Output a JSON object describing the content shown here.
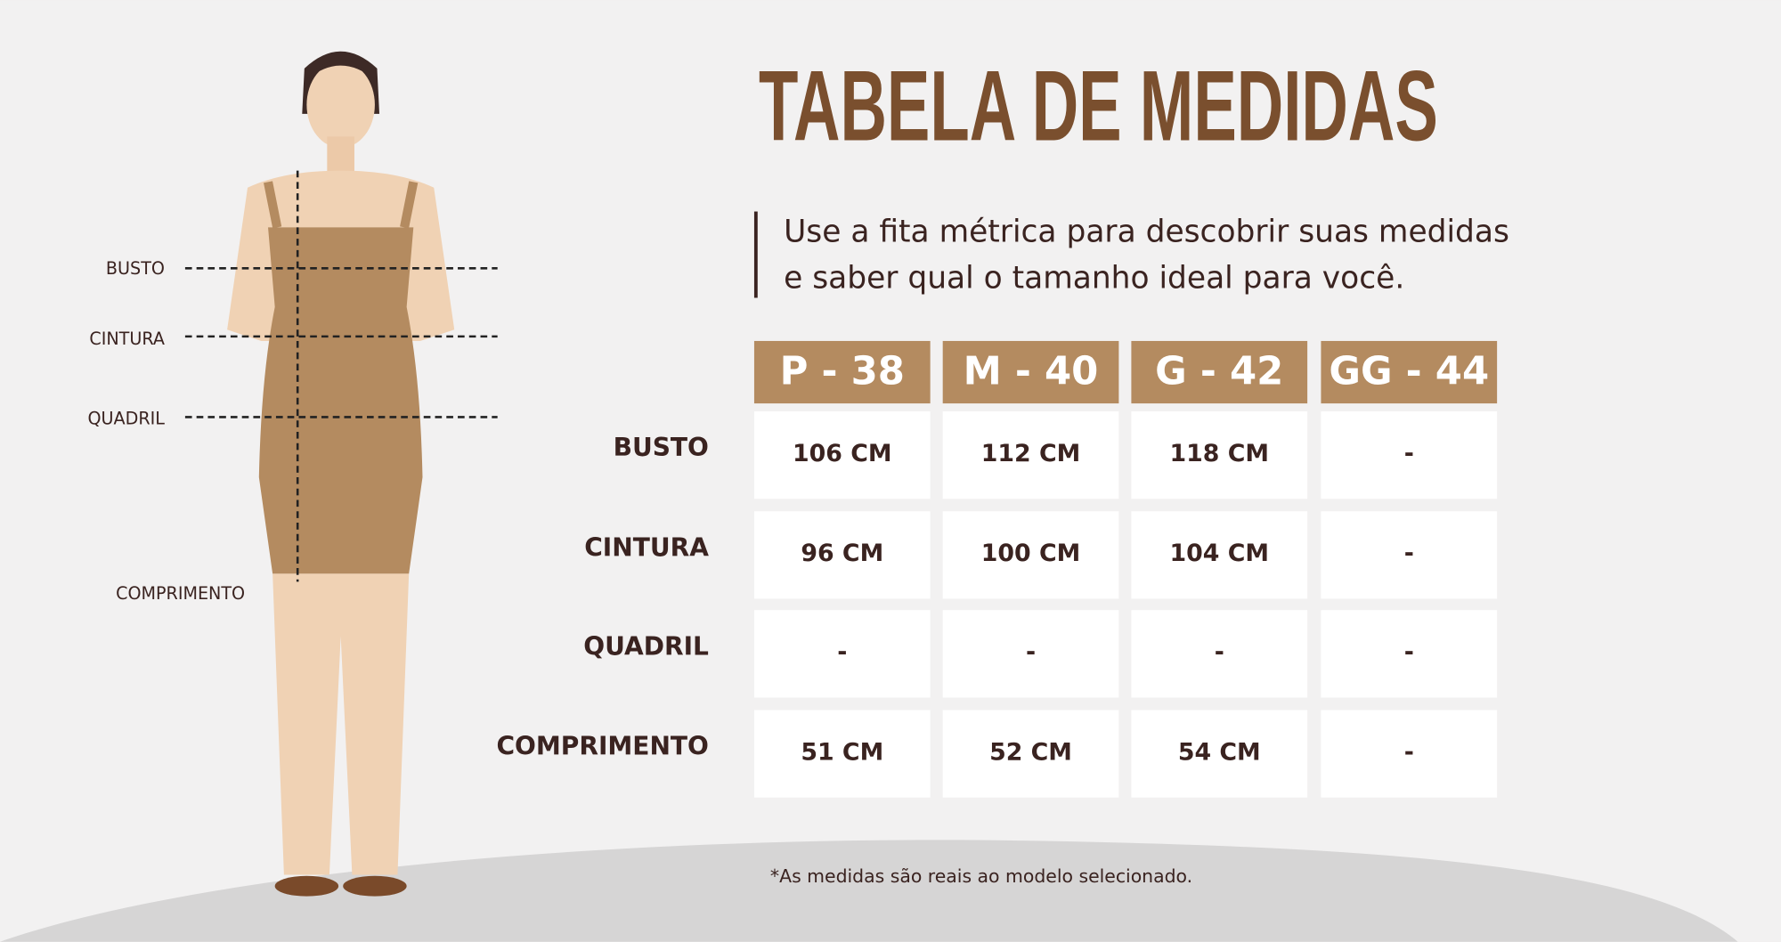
{
  "title": "TABELA DE MEDIDAS",
  "subtitle": [
    "Use a fita métrica para descobrir suas medidas",
    "e saber qual o tamanho ideal para você."
  ],
  "figure_labels": [
    "BUSTO",
    "CINTURA",
    "QUADRIL",
    "COMPRIMENTO"
  ],
  "table": {
    "columns": [
      "P - 38",
      "M - 40",
      "G - 42",
      "GG - 44"
    ],
    "rows": [
      {
        "label": "BUSTO",
        "cells": [
          "106 CM",
          "112 CM",
          "118 CM",
          "-"
        ]
      },
      {
        "label": "CINTURA",
        "cells": [
          "96 CM",
          "100 CM",
          "104 CM",
          "-"
        ]
      },
      {
        "label": "QUADRIL",
        "cells": [
          "-",
          "-",
          "-",
          "-"
        ]
      },
      {
        "label": "COMPRIMENTO",
        "cells": [
          "51 CM",
          "52 CM",
          "54 CM",
          "-"
        ]
      }
    ]
  },
  "footnote": "*As medidas são reais ao modelo selecionado."
}
